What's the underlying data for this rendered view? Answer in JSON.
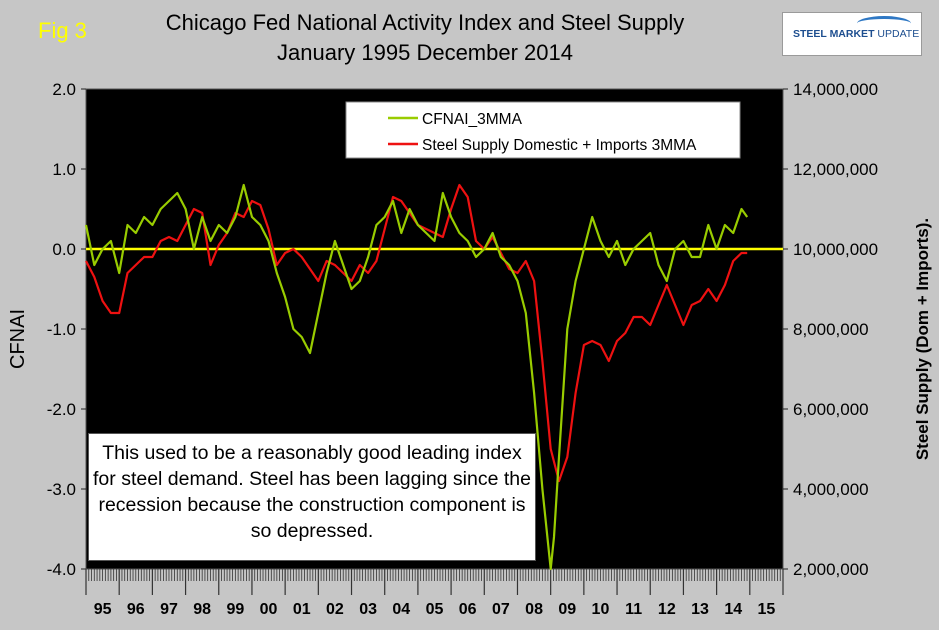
{
  "fig_label": "Fig 3",
  "logo": {
    "text_bold": "STEEL MARKET",
    "text_light": " UPDATE"
  },
  "chart_data": {
    "type": "line",
    "title": "Chicago Fed National Activity Index and Steel Supply",
    "subtitle": "January 1995 December 2014",
    "ylabel": "CFNAI",
    "ylabel_right": "Steel Supply (Dom + Imports).",
    "ylim": [
      -4.0,
      2.0
    ],
    "yticks": [
      "2.0",
      "1.0",
      "0.0",
      "-1.0",
      "-2.0",
      "-3.0",
      "-4.0"
    ],
    "ylim_right": [
      2000000,
      14000000
    ],
    "yticks_right": [
      "14,000,000",
      "12,000,000",
      "10,000,000",
      "8,000,000",
      "6,000,000",
      "4,000,000",
      "2,000,000"
    ],
    "xlim": [
      1995,
      2016
    ],
    "xticks": [
      "95",
      "96",
      "97",
      "98",
      "99",
      "00",
      "01",
      "02",
      "03",
      "04",
      "05",
      "06",
      "07",
      "08",
      "09",
      "10",
      "11",
      "12",
      "13",
      "14",
      "15"
    ],
    "reference_line": 0.0,
    "grid": false,
    "legend_position": "top-right",
    "series": [
      {
        "name": "CFNAI_3MMA",
        "color": "#99cc00",
        "axis": "left",
        "x": [
          1995.0,
          1995.25,
          1995.5,
          1995.75,
          1996.0,
          1996.25,
          1996.5,
          1996.75,
          1997.0,
          1997.25,
          1997.5,
          1997.75,
          1998.0,
          1998.25,
          1998.5,
          1998.75,
          1999.0,
          1999.25,
          1999.5,
          1999.75,
          2000.0,
          2000.25,
          2000.5,
          2000.75,
          2001.0,
          2001.25,
          2001.5,
          2001.75,
          2002.0,
          2002.25,
          2002.5,
          2002.75,
          2003.0,
          2003.25,
          2003.5,
          2003.75,
          2004.0,
          2004.25,
          2004.5,
          2004.75,
          2005.0,
          2005.25,
          2005.5,
          2005.75,
          2006.0,
          2006.25,
          2006.5,
          2006.75,
          2007.0,
          2007.25,
          2007.5,
          2007.75,
          2008.0,
          2008.25,
          2008.5,
          2008.75,
          2009.0,
          2009.1,
          2009.25,
          2009.5,
          2009.75,
          2010.0,
          2010.25,
          2010.5,
          2010.75,
          2011.0,
          2011.25,
          2011.5,
          2011.75,
          2012.0,
          2012.25,
          2012.5,
          2012.75,
          2013.0,
          2013.25,
          2013.5,
          2013.75,
          2014.0,
          2014.25,
          2014.5,
          2014.75,
          2014.92
        ],
        "y": [
          0.3,
          -0.2,
          0.0,
          0.1,
          -0.3,
          0.3,
          0.2,
          0.4,
          0.3,
          0.5,
          0.6,
          0.7,
          0.5,
          0.0,
          0.4,
          0.1,
          0.3,
          0.2,
          0.4,
          0.8,
          0.4,
          0.3,
          0.1,
          -0.3,
          -0.6,
          -1.0,
          -1.1,
          -1.3,
          -0.8,
          -0.3,
          0.1,
          -0.2,
          -0.5,
          -0.4,
          -0.1,
          0.3,
          0.4,
          0.6,
          0.2,
          0.5,
          0.3,
          0.2,
          0.1,
          0.7,
          0.4,
          0.2,
          0.1,
          -0.1,
          0.0,
          0.2,
          -0.1,
          -0.2,
          -0.4,
          -0.8,
          -1.8,
          -3.0,
          -4.0,
          -3.6,
          -2.6,
          -1.0,
          -0.4,
          0.0,
          0.4,
          0.1,
          -0.1,
          0.1,
          -0.2,
          0.0,
          0.1,
          0.2,
          -0.2,
          -0.4,
          0.0,
          0.1,
          -0.1,
          -0.1,
          0.3,
          0.0,
          0.3,
          0.2,
          0.5,
          0.4
        ]
      },
      {
        "name": "Steel Supply Domestic + Imports 3MMA",
        "color": "#ee1111",
        "axis": "right",
        "x": [
          1995.0,
          1995.25,
          1995.5,
          1995.75,
          1996.0,
          1996.25,
          1996.5,
          1996.75,
          1997.0,
          1997.25,
          1997.5,
          1997.75,
          1998.0,
          1998.25,
          1998.5,
          1998.75,
          1999.0,
          1999.25,
          1999.5,
          1999.75,
          2000.0,
          2000.25,
          2000.5,
          2000.75,
          2001.0,
          2001.25,
          2001.5,
          2001.75,
          2002.0,
          2002.25,
          2002.5,
          2002.75,
          2003.0,
          2003.25,
          2003.5,
          2003.75,
          2004.0,
          2004.25,
          2004.5,
          2004.75,
          2005.0,
          2005.25,
          2005.5,
          2005.75,
          2006.0,
          2006.25,
          2006.5,
          2006.75,
          2007.0,
          2007.25,
          2007.5,
          2007.75,
          2008.0,
          2008.25,
          2008.5,
          2008.75,
          2009.0,
          2009.25,
          2009.5,
          2009.75,
          2010.0,
          2010.25,
          2010.5,
          2010.75,
          2011.0,
          2011.25,
          2011.5,
          2011.75,
          2012.0,
          2012.25,
          2012.5,
          2012.75,
          2013.0,
          2013.25,
          2013.5,
          2013.75,
          2014.0,
          2014.25,
          2014.5,
          2014.75,
          2014.92
        ],
        "y": [
          9700000,
          9300000,
          8700000,
          8400000,
          8400000,
          9400000,
          9600000,
          9800000,
          9800000,
          10200000,
          10300000,
          10200000,
          10600000,
          11000000,
          10900000,
          9600000,
          10100000,
          10400000,
          10900000,
          10800000,
          11200000,
          11100000,
          10500000,
          9600000,
          9900000,
          10000000,
          9800000,
          9500000,
          9200000,
          9700000,
          9600000,
          9400000,
          9200000,
          9600000,
          9400000,
          9700000,
          10500000,
          11300000,
          11200000,
          10900000,
          10600000,
          10500000,
          10400000,
          10300000,
          11000000,
          11600000,
          11300000,
          10200000,
          10000000,
          10300000,
          9900000,
          9500000,
          9400000,
          9700000,
          9200000,
          7200000,
          5000000,
          4200000,
          4800000,
          6400000,
          7600000,
          7700000,
          7600000,
          7200000,
          7700000,
          7900000,
          8300000,
          8300000,
          8100000,
          8600000,
          9100000,
          8600000,
          8100000,
          8600000,
          8700000,
          9000000,
          8700000,
          9100000,
          9700000,
          9900000,
          9900000
        ]
      }
    ],
    "annotation": "This used to be a reasonably good leading index for steel demand. Steel has been lagging since the recession because the construction component is so depressed."
  }
}
